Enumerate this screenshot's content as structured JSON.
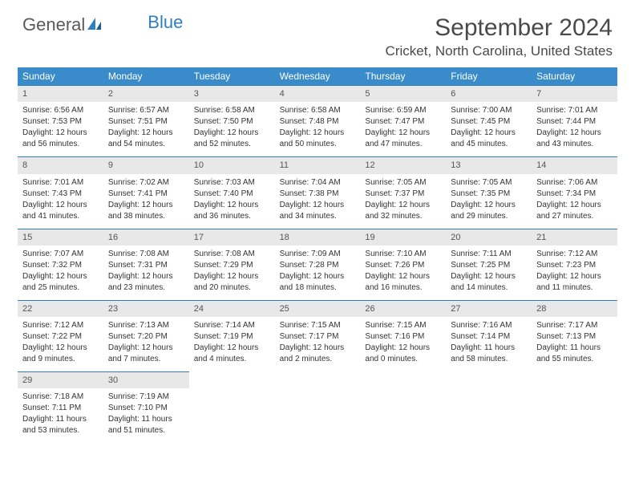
{
  "logo": {
    "text1": "General",
    "text2": "Blue"
  },
  "title": "September 2024",
  "location": "Cricket, North Carolina, United States",
  "colors": {
    "header_bg": "#3a8bc9",
    "header_text": "#ffffff",
    "day_number_bg": "#e8e8e8",
    "day_border": "#2f7fc2",
    "body_text": "#333333",
    "title_text": "#4a4a4a"
  },
  "day_names": [
    "Sunday",
    "Monday",
    "Tuesday",
    "Wednesday",
    "Thursday",
    "Friday",
    "Saturday"
  ],
  "weeks": [
    [
      {
        "n": "1",
        "sr": "Sunrise: 6:56 AM",
        "ss": "Sunset: 7:53 PM",
        "d1": "Daylight: 12 hours",
        "d2": "and 56 minutes."
      },
      {
        "n": "2",
        "sr": "Sunrise: 6:57 AM",
        "ss": "Sunset: 7:51 PM",
        "d1": "Daylight: 12 hours",
        "d2": "and 54 minutes."
      },
      {
        "n": "3",
        "sr": "Sunrise: 6:58 AM",
        "ss": "Sunset: 7:50 PM",
        "d1": "Daylight: 12 hours",
        "d2": "and 52 minutes."
      },
      {
        "n": "4",
        "sr": "Sunrise: 6:58 AM",
        "ss": "Sunset: 7:48 PM",
        "d1": "Daylight: 12 hours",
        "d2": "and 50 minutes."
      },
      {
        "n": "5",
        "sr": "Sunrise: 6:59 AM",
        "ss": "Sunset: 7:47 PM",
        "d1": "Daylight: 12 hours",
        "d2": "and 47 minutes."
      },
      {
        "n": "6",
        "sr": "Sunrise: 7:00 AM",
        "ss": "Sunset: 7:45 PM",
        "d1": "Daylight: 12 hours",
        "d2": "and 45 minutes."
      },
      {
        "n": "7",
        "sr": "Sunrise: 7:01 AM",
        "ss": "Sunset: 7:44 PM",
        "d1": "Daylight: 12 hours",
        "d2": "and 43 minutes."
      }
    ],
    [
      {
        "n": "8",
        "sr": "Sunrise: 7:01 AM",
        "ss": "Sunset: 7:43 PM",
        "d1": "Daylight: 12 hours",
        "d2": "and 41 minutes."
      },
      {
        "n": "9",
        "sr": "Sunrise: 7:02 AM",
        "ss": "Sunset: 7:41 PM",
        "d1": "Daylight: 12 hours",
        "d2": "and 38 minutes."
      },
      {
        "n": "10",
        "sr": "Sunrise: 7:03 AM",
        "ss": "Sunset: 7:40 PM",
        "d1": "Daylight: 12 hours",
        "d2": "and 36 minutes."
      },
      {
        "n": "11",
        "sr": "Sunrise: 7:04 AM",
        "ss": "Sunset: 7:38 PM",
        "d1": "Daylight: 12 hours",
        "d2": "and 34 minutes."
      },
      {
        "n": "12",
        "sr": "Sunrise: 7:05 AM",
        "ss": "Sunset: 7:37 PM",
        "d1": "Daylight: 12 hours",
        "d2": "and 32 minutes."
      },
      {
        "n": "13",
        "sr": "Sunrise: 7:05 AM",
        "ss": "Sunset: 7:35 PM",
        "d1": "Daylight: 12 hours",
        "d2": "and 29 minutes."
      },
      {
        "n": "14",
        "sr": "Sunrise: 7:06 AM",
        "ss": "Sunset: 7:34 PM",
        "d1": "Daylight: 12 hours",
        "d2": "and 27 minutes."
      }
    ],
    [
      {
        "n": "15",
        "sr": "Sunrise: 7:07 AM",
        "ss": "Sunset: 7:32 PM",
        "d1": "Daylight: 12 hours",
        "d2": "and 25 minutes."
      },
      {
        "n": "16",
        "sr": "Sunrise: 7:08 AM",
        "ss": "Sunset: 7:31 PM",
        "d1": "Daylight: 12 hours",
        "d2": "and 23 minutes."
      },
      {
        "n": "17",
        "sr": "Sunrise: 7:08 AM",
        "ss": "Sunset: 7:29 PM",
        "d1": "Daylight: 12 hours",
        "d2": "and 20 minutes."
      },
      {
        "n": "18",
        "sr": "Sunrise: 7:09 AM",
        "ss": "Sunset: 7:28 PM",
        "d1": "Daylight: 12 hours",
        "d2": "and 18 minutes."
      },
      {
        "n": "19",
        "sr": "Sunrise: 7:10 AM",
        "ss": "Sunset: 7:26 PM",
        "d1": "Daylight: 12 hours",
        "d2": "and 16 minutes."
      },
      {
        "n": "20",
        "sr": "Sunrise: 7:11 AM",
        "ss": "Sunset: 7:25 PM",
        "d1": "Daylight: 12 hours",
        "d2": "and 14 minutes."
      },
      {
        "n": "21",
        "sr": "Sunrise: 7:12 AM",
        "ss": "Sunset: 7:23 PM",
        "d1": "Daylight: 12 hours",
        "d2": "and 11 minutes."
      }
    ],
    [
      {
        "n": "22",
        "sr": "Sunrise: 7:12 AM",
        "ss": "Sunset: 7:22 PM",
        "d1": "Daylight: 12 hours",
        "d2": "and 9 minutes."
      },
      {
        "n": "23",
        "sr": "Sunrise: 7:13 AM",
        "ss": "Sunset: 7:20 PM",
        "d1": "Daylight: 12 hours",
        "d2": "and 7 minutes."
      },
      {
        "n": "24",
        "sr": "Sunrise: 7:14 AM",
        "ss": "Sunset: 7:19 PM",
        "d1": "Daylight: 12 hours",
        "d2": "and 4 minutes."
      },
      {
        "n": "25",
        "sr": "Sunrise: 7:15 AM",
        "ss": "Sunset: 7:17 PM",
        "d1": "Daylight: 12 hours",
        "d2": "and 2 minutes."
      },
      {
        "n": "26",
        "sr": "Sunrise: 7:15 AM",
        "ss": "Sunset: 7:16 PM",
        "d1": "Daylight: 12 hours",
        "d2": "and 0 minutes."
      },
      {
        "n": "27",
        "sr": "Sunrise: 7:16 AM",
        "ss": "Sunset: 7:14 PM",
        "d1": "Daylight: 11 hours",
        "d2": "and 58 minutes."
      },
      {
        "n": "28",
        "sr": "Sunrise: 7:17 AM",
        "ss": "Sunset: 7:13 PM",
        "d1": "Daylight: 11 hours",
        "d2": "and 55 minutes."
      }
    ],
    [
      {
        "n": "29",
        "sr": "Sunrise: 7:18 AM",
        "ss": "Sunset: 7:11 PM",
        "d1": "Daylight: 11 hours",
        "d2": "and 53 minutes."
      },
      {
        "n": "30",
        "sr": "Sunrise: 7:19 AM",
        "ss": "Sunset: 7:10 PM",
        "d1": "Daylight: 11 hours",
        "d2": "and 51 minutes."
      },
      null,
      null,
      null,
      null,
      null
    ]
  ]
}
